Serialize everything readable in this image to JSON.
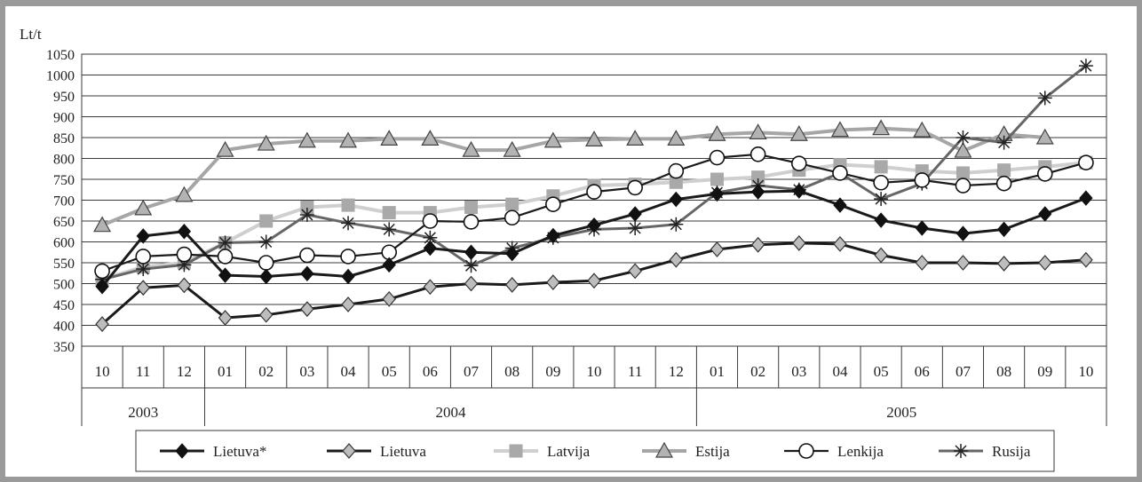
{
  "chart_data": {
    "type": "line",
    "ylabel": "Lt/t",
    "ylim": [
      350,
      1050
    ],
    "yticks": [
      350,
      400,
      450,
      500,
      550,
      600,
      650,
      700,
      750,
      800,
      850,
      900,
      950,
      1000,
      1050
    ],
    "months": [
      "10",
      "11",
      "12",
      "01",
      "02",
      "03",
      "04",
      "05",
      "06",
      "07",
      "08",
      "09",
      "10",
      "11",
      "12",
      "01",
      "02",
      "03",
      "04",
      "05",
      "06",
      "07",
      "08",
      "09",
      "10"
    ],
    "years": [
      {
        "label": "2003",
        "span": 3
      },
      {
        "label": "2004",
        "span": 12
      },
      {
        "label": "2005",
        "span": 10
      }
    ],
    "grid": true,
    "legend_position": "bottom",
    "series": [
      {
        "name": "Lietuva*",
        "color": "#1a1a1a",
        "marker": "diamond-filled",
        "values": [
          493,
          614,
          625,
          520,
          517,
          524,
          517,
          545,
          585,
          575,
          572,
          615,
          640,
          667,
          702,
          715,
          720,
          722,
          688,
          652,
          633,
          620,
          630,
          667,
          705
        ]
      },
      {
        "name": "Lietuva",
        "color": "#1a1a1a",
        "marker": "diamond-gray",
        "values": [
          403,
          490,
          496,
          418,
          425,
          439,
          450,
          463,
          492,
          500,
          497,
          503,
          507,
          530,
          557,
          582,
          593,
          597,
          595,
          568,
          550,
          550,
          548,
          550,
          557
        ]
      },
      {
        "name": "Latvija",
        "color": "#cfcfcf",
        "marker": "square",
        "values": [
          510,
          540,
          550,
          598,
          650,
          683,
          688,
          670,
          670,
          683,
          690,
          710,
          735,
          738,
          743,
          750,
          755,
          772,
          785,
          780,
          770,
          765,
          772,
          780,
          790
        ]
      },
      {
        "name": "Estija",
        "color": "#a6a6a6",
        "marker": "triangle",
        "values": [
          640,
          680,
          712,
          820,
          835,
          842,
          842,
          847,
          847,
          820,
          820,
          842,
          845,
          847,
          847,
          858,
          862,
          858,
          868,
          872,
          867,
          818,
          858,
          850,
          null
        ]
      },
      {
        "name": "Lenkija",
        "color": "#1a1a1a",
        "marker": "circle",
        "values": [
          530,
          565,
          570,
          565,
          550,
          568,
          565,
          575,
          650,
          648,
          658,
          690,
          720,
          730,
          770,
          802,
          810,
          788,
          765,
          742,
          748,
          735,
          740,
          763,
          790
        ]
      },
      {
        "name": "Rusija",
        "color": "#666666",
        "marker": "star",
        "values": [
          510,
          535,
          545,
          598,
          600,
          665,
          645,
          630,
          610,
          543,
          585,
          610,
          630,
          633,
          642,
          718,
          735,
          725,
          765,
          703,
          740,
          850,
          838,
          945,
          1022
        ]
      }
    ]
  }
}
